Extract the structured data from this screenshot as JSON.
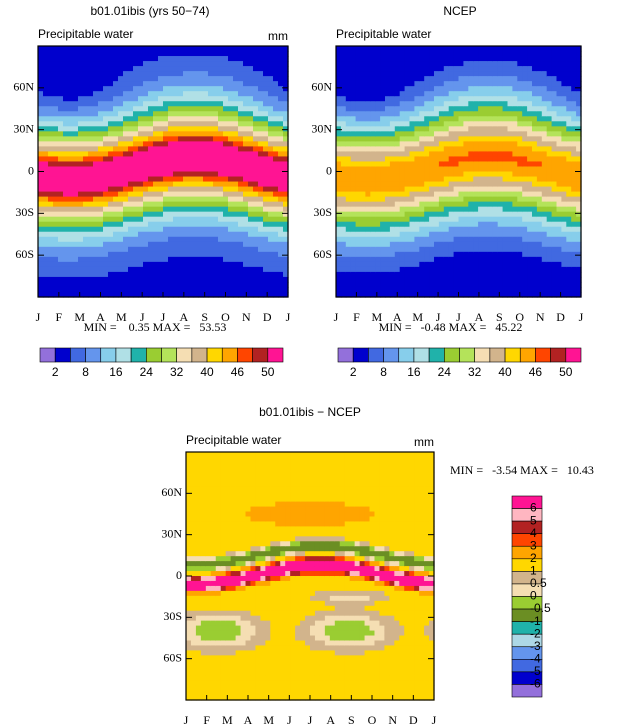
{
  "chart_data": [
    {
      "type": "contour",
      "title": "b01.01ibis (yrs 50−74)",
      "subtitle": "Precipitable water",
      "units": "mm",
      "categories": [
        "J",
        "F",
        "M",
        "A",
        "M",
        "J",
        "J",
        "A",
        "S",
        "O",
        "N",
        "D",
        "J"
      ],
      "ylim": [
        -90,
        90
      ],
      "yticks": [
        {
          "value": 60,
          "label": "60N"
        },
        {
          "value": 30,
          "label": "30N"
        },
        0,
        {
          "value": -30,
          "label": "30S"
        },
        {
          "value": -60,
          "label": "60S"
        }
      ],
      "stats": "MIN =    0.35 MAX =   53.53",
      "colorbar": {
        "orientation": "horizontal",
        "colors": [
          "#9370db",
          "#0000cd",
          "#4169e1",
          "#6495ed",
          "#87ceeb",
          "#b0e0e6",
          "#20b2aa",
          "#9acd32",
          "#b4e35a",
          "#f5deb3",
          "#d2b48c",
          "#ffd700",
          "#ffa500",
          "#ff4500",
          "#b22222",
          "#ff1493"
        ],
        "labels": [
          2,
          8,
          16,
          24,
          32,
          40,
          46,
          50
        ]
      }
    },
    {
      "type": "contour",
      "title": "NCEP",
      "subtitle": "Precipitable water",
      "categories": [
        "J",
        "F",
        "M",
        "A",
        "M",
        "J",
        "J",
        "A",
        "S",
        "O",
        "N",
        "D",
        "J"
      ],
      "ylim": [
        -90,
        90
      ],
      "yticks": [
        {
          "value": 60,
          "label": "60N"
        },
        {
          "value": 30,
          "label": "30N"
        },
        0,
        {
          "value": -30,
          "label": "30S"
        },
        {
          "value": -60,
          "label": "60S"
        }
      ],
      "stats": "MIN =   -0.48 MAX =   45.22",
      "colorbar": {
        "orientation": "horizontal",
        "colors": [
          "#9370db",
          "#0000cd",
          "#4169e1",
          "#6495ed",
          "#87ceeb",
          "#b0e0e6",
          "#20b2aa",
          "#9acd32",
          "#b4e35a",
          "#f5deb3",
          "#d2b48c",
          "#ffd700",
          "#ffa500",
          "#ff4500",
          "#b22222",
          "#ff1493"
        ],
        "labels": [
          2,
          8,
          16,
          24,
          32,
          40,
          46,
          50
        ]
      }
    },
    {
      "type": "contour",
      "title": "b01.01ibis − NCEP",
      "subtitle": "Precipitable water",
      "units": "mm",
      "categories": [
        "J",
        "F",
        "M",
        "A",
        "M",
        "J",
        "J",
        "A",
        "S",
        "O",
        "N",
        "D",
        "J"
      ],
      "ylim": [
        -90,
        90
      ],
      "yticks": [
        {
          "value": 60,
          "label": "60N"
        },
        {
          "value": 30,
          "label": "30N"
        },
        0,
        {
          "value": -30,
          "label": "30S"
        },
        {
          "value": -60,
          "label": "60S"
        }
      ],
      "stats": "MIN =   -3.54 MAX =   10.43",
      "colorbar": {
        "orientation": "vertical",
        "colors": [
          "#ff1493",
          "#ffb6c1",
          "#b22222",
          "#ff4500",
          "#ffa500",
          "#ffd700",
          "#d2b48c",
          "#f5deb3",
          "#9acd32",
          "#6b8e23",
          "#20b2aa",
          "#add8e6",
          "#6495ed",
          "#4169e1",
          "#0000cd",
          "#9370db"
        ],
        "labels": [
          6,
          5,
          4,
          3,
          2,
          1,
          0.5,
          0,
          -0.5,
          -1,
          -2,
          -3,
          -4,
          -5,
          -6
        ]
      }
    }
  ]
}
